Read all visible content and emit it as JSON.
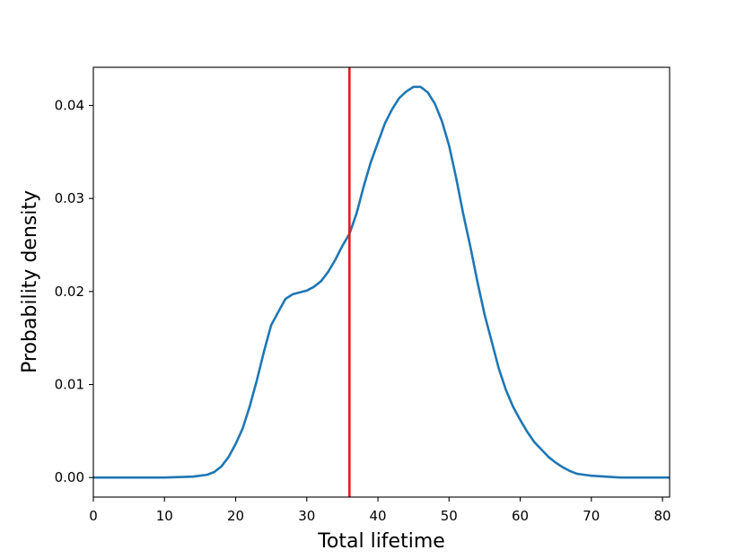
{
  "chart_data": {
    "type": "line",
    "title": "",
    "xlabel": "Total lifetime",
    "ylabel": "Probability density",
    "xlim": [
      0,
      81
    ],
    "ylim": [
      -0.0021,
      0.0441
    ],
    "grid": false,
    "legend": "none",
    "x_ticks": [
      0,
      10,
      20,
      30,
      40,
      50,
      60,
      70,
      80
    ],
    "x_tick_labels": [
      "0",
      "10",
      "20",
      "30",
      "40",
      "50",
      "60",
      "70",
      "80"
    ],
    "y_ticks": [
      0,
      0.01,
      0.02,
      0.03,
      0.04
    ],
    "y_tick_labels": [
      "0.00",
      "0.01",
      "0.02",
      "0.03",
      "0.04"
    ],
    "series": [
      {
        "color": "#1f77b4",
        "x": [
          0,
          5,
          10,
          14,
          16,
          17,
          18,
          19,
          20,
          21,
          22,
          23,
          24,
          25,
          26,
          27,
          28,
          29,
          30,
          31,
          32,
          33,
          34,
          35,
          36,
          37,
          38,
          39,
          40,
          41,
          42,
          43,
          44,
          45,
          46,
          47,
          48,
          49,
          50,
          51,
          52,
          53,
          54,
          55,
          56,
          57,
          58,
          59,
          60,
          61,
          62,
          63,
          64,
          65,
          66,
          67,
          68,
          69,
          70,
          72,
          74,
          76,
          78,
          80,
          81
        ],
        "y": [
          0,
          0,
          0,
          0.0001,
          0.0003,
          0.0006,
          0.0012,
          0.0022,
          0.0036,
          0.0053,
          0.0077,
          0.0105,
          0.0136,
          0.0164,
          0.0178,
          0.0192,
          0.0197,
          0.0199,
          0.0201,
          0.0205,
          0.0211,
          0.0221,
          0.0234,
          0.0249,
          0.0262,
          0.0284,
          0.0313,
          0.0339,
          0.036,
          0.0381,
          0.0396,
          0.0408,
          0.0415,
          0.042,
          0.042,
          0.0414,
          0.0402,
          0.0383,
          0.0357,
          0.0322,
          0.0283,
          0.0248,
          0.021,
          0.0175,
          0.0146,
          0.0117,
          0.0094,
          0.0076,
          0.0062,
          0.0049,
          0.0038,
          0.003,
          0.0022,
          0.0016,
          0.0011,
          0.0007,
          0.0004,
          0.0003,
          0.0002,
          0.0001,
          0,
          0,
          0,
          0,
          0
        ]
      }
    ],
    "vlines": [
      {
        "x": 36,
        "color": "#e41a1c"
      }
    ]
  }
}
